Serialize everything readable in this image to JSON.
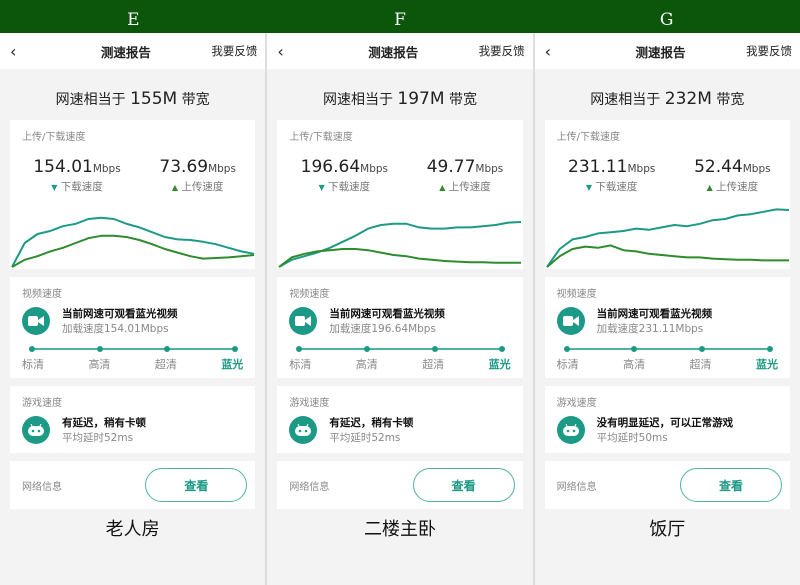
{
  "colors": {
    "header": "#0b560b",
    "download_line": "#1d9a86",
    "upload_line": "#2e8b2e",
    "accent": "#1d9a86"
  },
  "common": {
    "back_icon": "chevron-left-icon",
    "nav_title": "测速报告",
    "feedback": "我要反馈",
    "headline_prefix": "网速相当于",
    "headline_suffix": "带宽",
    "speed_card_label": "上传/下载速度",
    "unit": "Mbps",
    "download_label": "下载速度",
    "upload_label": "上传速度",
    "video_card_label": "视频速度",
    "video_prefix": "当前网速可观看",
    "video_quality": "蓝光视频",
    "load_prefix": "加载速度",
    "levels": [
      "标清",
      "高清",
      "超清",
      "蓝光"
    ],
    "game_card_label": "游戏速度",
    "latency_prefix": "平均延时",
    "network_label": "网络信息",
    "view_button": "查看"
  },
  "panels": [
    {
      "column": "E",
      "bandwidth": "155M",
      "download": "154.01",
      "upload": "73.69",
      "load_speed": "154.01Mbps",
      "game_status": "有延迟，稍有卡顿",
      "latency": "52ms",
      "caption": "老人房",
      "chart_data": {
        "type": "line",
        "series": [
          {
            "values": [
              0,
              40,
              55,
              60,
              68,
              72,
              80,
              82,
              80,
              72,
              66,
              58,
              50,
              46,
              45,
              42,
              38,
              32,
              26,
              22
            ]
          },
          {
            "values": [
              0,
              12,
              18,
              26,
              32,
              40,
              48,
              52,
              52,
              50,
              45,
              38,
              30,
              24,
              18,
              14,
              15,
              16,
              18,
              20
            ]
          }
        ]
      }
    },
    {
      "column": "F",
      "bandwidth": "197M",
      "download": "196.64",
      "upload": "49.77",
      "load_speed": "196.64Mbps",
      "game_status": "有延迟，稍有卡顿",
      "latency": "52ms",
      "caption": "二楼主卧",
      "chart_data": {
        "type": "line",
        "series": [
          {
            "values": [
              0,
              12,
              18,
              24,
              32,
              42,
              52,
              64,
              70,
              72,
              72,
              66,
              64,
              64,
              66,
              66,
              68,
              70,
              74,
              75
            ]
          },
          {
            "values": [
              0,
              16,
              22,
              26,
              28,
              30,
              30,
              28,
              24,
              20,
              18,
              14,
              12,
              10,
              9,
              8,
              8,
              7,
              7,
              7
            ]
          }
        ]
      }
    },
    {
      "column": "G",
      "bandwidth": "232M",
      "download": "231.11",
      "upload": "52.44",
      "load_speed": "231.11Mbps",
      "game_status": "没有明显延迟，可以正常游戏",
      "latency": "50ms",
      "caption": "饭厅",
      "chart_data": {
        "type": "line",
        "series": [
          {
            "values": [
              0,
              30,
              46,
              50,
              56,
              58,
              60,
              64,
              62,
              66,
              70,
              68,
              72,
              78,
              80,
              86,
              88,
              92,
              96,
              95
            ]
          },
          {
            "values": [
              0,
              18,
              30,
              34,
              32,
              36,
              28,
              26,
              22,
              20,
              18,
              16,
              16,
              14,
              13,
              12,
              12,
              11,
              11,
              11
            ]
          }
        ]
      }
    }
  ]
}
